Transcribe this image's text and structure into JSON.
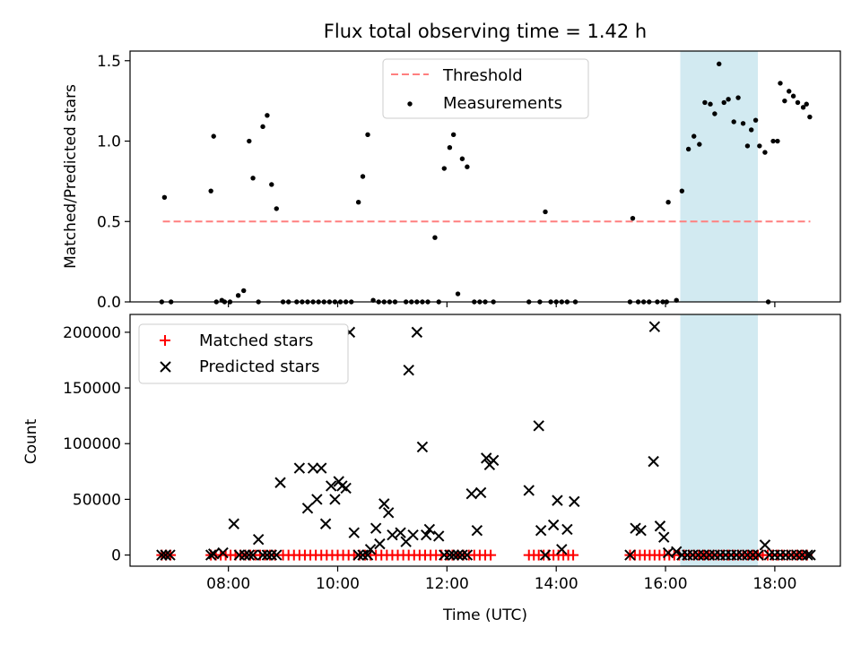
{
  "figure": {
    "title": "Flux total observing time = 1.42 h",
    "shaded_span": {
      "x_start_hours": 16.27,
      "x_end_hours": 17.69,
      "color": "#add8e6"
    }
  },
  "chart_data": [
    {
      "type": "scatter",
      "panel": "top",
      "ylabel": "Matched/Predicted stars",
      "xlabel": "",
      "xlim": [
        6.2,
        19.2
      ],
      "ylim": [
        0,
        1.56
      ],
      "y_ticks": [
        0.0,
        0.5,
        1.0,
        1.5
      ],
      "y_tick_labels": [
        "0.0",
        "0.5",
        "1.0",
        "1.5"
      ],
      "legend": {
        "position": "top-center",
        "threshold_label": "Threshold",
        "measurements_label": "Measurements"
      },
      "threshold": {
        "value": 0.5,
        "x_range": [
          6.8,
          18.65
        ],
        "color": "#ff7f7f"
      },
      "series": [
        {
          "name": "Measurements",
          "color": "#000000",
          "points": [
            [
              6.78,
              0
            ],
            [
              6.83,
              0.65
            ],
            [
              6.95,
              0
            ],
            [
              7.68,
              0.69
            ],
            [
              7.73,
              1.03
            ],
            [
              7.78,
              0
            ],
            [
              7.88,
              0.01
            ],
            [
              7.93,
              0
            ],
            [
              8.03,
              0
            ],
            [
              8.18,
              0.04
            ],
            [
              8.28,
              0.07
            ],
            [
              8.38,
              1.0
            ],
            [
              8.45,
              0.77
            ],
            [
              8.55,
              0
            ],
            [
              8.63,
              1.09
            ],
            [
              8.71,
              1.16
            ],
            [
              8.79,
              0.73
            ],
            [
              8.88,
              0.58
            ],
            [
              9.0,
              0
            ],
            [
              9.1,
              0
            ],
            [
              9.25,
              0
            ],
            [
              9.35,
              0
            ],
            [
              9.45,
              0
            ],
            [
              9.55,
              0
            ],
            [
              9.65,
              0
            ],
            [
              9.75,
              0
            ],
            [
              9.85,
              0
            ],
            [
              9.95,
              0
            ],
            [
              10.05,
              0
            ],
            [
              10.15,
              0
            ],
            [
              10.25,
              0
            ],
            [
              10.38,
              0.62
            ],
            [
              10.46,
              0.78
            ],
            [
              10.55,
              1.04
            ],
            [
              10.65,
              0.01
            ],
            [
              10.75,
              0
            ],
            [
              10.85,
              0
            ],
            [
              10.95,
              0
            ],
            [
              11.05,
              0
            ],
            [
              11.25,
              0
            ],
            [
              11.35,
              0
            ],
            [
              11.45,
              0
            ],
            [
              11.55,
              0
            ],
            [
              11.65,
              0
            ],
            [
              11.78,
              0.4
            ],
            [
              11.85,
              0
            ],
            [
              11.95,
              0.83
            ],
            [
              12.05,
              0.96
            ],
            [
              12.12,
              1.04
            ],
            [
              12.2,
              0.05
            ],
            [
              12.28,
              0.89
            ],
            [
              12.37,
              0.84
            ],
            [
              12.5,
              0
            ],
            [
              12.6,
              0
            ],
            [
              12.7,
              0
            ],
            [
              12.85,
              0
            ],
            [
              13.5,
              0
            ],
            [
              13.7,
              0
            ],
            [
              13.8,
              0.56
            ],
            [
              13.9,
              0
            ],
            [
              14.0,
              0
            ],
            [
              14.1,
              0
            ],
            [
              14.2,
              0
            ],
            [
              14.35,
              0
            ],
            [
              15.35,
              0
            ],
            [
              15.4,
              0.52
            ],
            [
              15.5,
              0
            ],
            [
              15.6,
              0
            ],
            [
              15.7,
              0
            ],
            [
              15.85,
              0
            ],
            [
              15.95,
              0
            ],
            [
              16.02,
              0
            ],
            [
              16.05,
              0.62
            ],
            [
              16.2,
              0.01
            ],
            [
              16.3,
              0.69
            ],
            [
              16.42,
              0.95
            ],
            [
              16.52,
              1.03
            ],
            [
              16.62,
              0.98
            ],
            [
              16.72,
              1.24
            ],
            [
              16.82,
              1.23
            ],
            [
              16.9,
              1.17
            ],
            [
              16.98,
              1.48
            ],
            [
              17.07,
              1.24
            ],
            [
              17.15,
              1.26
            ],
            [
              17.25,
              1.12
            ],
            [
              17.33,
              1.27
            ],
            [
              17.42,
              1.11
            ],
            [
              17.5,
              0.97
            ],
            [
              17.57,
              1.07
            ],
            [
              17.65,
              1.13
            ],
            [
              17.72,
              0.97
            ],
            [
              17.82,
              0.93
            ],
            [
              17.88,
              0
            ],
            [
              17.97,
              1.0
            ],
            [
              18.05,
              1.0
            ],
            [
              18.1,
              1.36
            ],
            [
              18.18,
              1.25
            ],
            [
              18.26,
              1.31
            ],
            [
              18.34,
              1.28
            ],
            [
              18.42,
              1.24
            ],
            [
              18.52,
              1.21
            ],
            [
              18.58,
              1.23
            ],
            [
              18.64,
              1.15
            ]
          ]
        }
      ]
    },
    {
      "type": "scatter",
      "panel": "bottom",
      "ylabel": "Count",
      "xlabel": "Time (UTC)",
      "xlim": [
        6.2,
        19.2
      ],
      "ylim": [
        -10000,
        216000
      ],
      "y_ticks": [
        0,
        50000,
        100000,
        150000,
        200000
      ],
      "y_tick_labels": [
        "0",
        "50000",
        "100000",
        "150000",
        "200000"
      ],
      "x_ticks": [
        8,
        10,
        12,
        14,
        16,
        18
      ],
      "x_tick_labels": [
        "08:00",
        "10:00",
        "12:00",
        "14:00",
        "16:00",
        "18:00"
      ],
      "legend": {
        "position": "top-left",
        "matched_label": "Matched stars",
        "predicted_label": "Predicted stars"
      },
      "series": [
        {
          "name": "Matched stars",
          "marker": "+",
          "color": "#ff0000",
          "x_ranges": [
            [
              6.78,
              6.95,
              0.08
            ],
            [
              7.68,
              8.9,
              0.09
            ],
            [
              9.0,
              12.85,
              0.1
            ],
            [
              13.5,
              14.35,
              0.09
            ],
            [
              15.35,
              18.65,
              0.09
            ]
          ],
          "y": 0
        },
        {
          "name": "Predicted stars",
          "marker": "x",
          "color": "#000000",
          "points": [
            [
              6.78,
              0
            ],
            [
              6.85,
              0
            ],
            [
              6.93,
              0
            ],
            [
              7.68,
              0
            ],
            [
              7.73,
              1000
            ],
            [
              7.9,
              2000
            ],
            [
              8.1,
              28000
            ],
            [
              8.2,
              0
            ],
            [
              8.3,
              0
            ],
            [
              8.38,
              0
            ],
            [
              8.45,
              0
            ],
            [
              8.55,
              14000
            ],
            [
              8.63,
              0
            ],
            [
              8.71,
              0
            ],
            [
              8.79,
              0
            ],
            [
              8.88,
              0
            ],
            [
              8.95,
              65000
            ],
            [
              9.3,
              78000
            ],
            [
              9.45,
              42000
            ],
            [
              9.55,
              78000
            ],
            [
              9.62,
              50000
            ],
            [
              9.7,
              78000
            ],
            [
              9.78,
              28000
            ],
            [
              9.88,
              62000
            ],
            [
              9.95,
              50000
            ],
            [
              10.02,
              66000
            ],
            [
              10.08,
              62000
            ],
            [
              10.15,
              60000
            ],
            [
              10.22,
              200000
            ],
            [
              10.3,
              20000
            ],
            [
              10.38,
              0
            ],
            [
              10.46,
              0
            ],
            [
              10.55,
              0
            ],
            [
              10.6,
              5000
            ],
            [
              10.7,
              24000
            ],
            [
              10.77,
              10000
            ],
            [
              10.85,
              46000
            ],
            [
              10.93,
              38000
            ],
            [
              11.0,
              18000
            ],
            [
              11.15,
              20000
            ],
            [
              11.25,
              12000
            ],
            [
              11.3,
              166000
            ],
            [
              11.38,
              18000
            ],
            [
              11.45,
              200000
            ],
            [
              11.55,
              97000
            ],
            [
              11.62,
              18000
            ],
            [
              11.68,
              23000
            ],
            [
              11.85,
              17000
            ],
            [
              11.95,
              0
            ],
            [
              12.05,
              0
            ],
            [
              12.12,
              0
            ],
            [
              12.2,
              0
            ],
            [
              12.28,
              0
            ],
            [
              12.37,
              0
            ],
            [
              12.45,
              55000
            ],
            [
              12.55,
              22000
            ],
            [
              12.62,
              56000
            ],
            [
              12.72,
              87000
            ],
            [
              12.78,
              81000
            ],
            [
              12.85,
              85000
            ],
            [
              13.5,
              58000
            ],
            [
              13.68,
              116000
            ],
            [
              13.72,
              22000
            ],
            [
              13.8,
              0
            ],
            [
              13.95,
              27000
            ],
            [
              14.02,
              49000
            ],
            [
              14.1,
              5000
            ],
            [
              14.2,
              23000
            ],
            [
              14.33,
              48000
            ],
            [
              15.35,
              0
            ],
            [
              15.45,
              24000
            ],
            [
              15.55,
              22000
            ],
            [
              15.78,
              84000
            ],
            [
              15.8,
              205000
            ],
            [
              15.9,
              26000
            ],
            [
              15.97,
              16000
            ],
            [
              16.05,
              2000
            ],
            [
              16.2,
              3000
            ],
            [
              16.3,
              0
            ],
            [
              16.4,
              0
            ],
            [
              16.5,
              0
            ],
            [
              16.6,
              0
            ],
            [
              16.7,
              0
            ],
            [
              16.8,
              0
            ],
            [
              16.9,
              0
            ],
            [
              17.0,
              0
            ],
            [
              17.1,
              0
            ],
            [
              17.2,
              0
            ],
            [
              17.3,
              0
            ],
            [
              17.4,
              0
            ],
            [
              17.5,
              0
            ],
            [
              17.6,
              0
            ],
            [
              17.7,
              0
            ],
            [
              17.82,
              9000
            ],
            [
              17.9,
              0
            ],
            [
              18.0,
              0
            ],
            [
              18.1,
              0
            ],
            [
              18.2,
              0
            ],
            [
              18.3,
              0
            ],
            [
              18.4,
              0
            ],
            [
              18.5,
              0
            ],
            [
              18.6,
              0
            ],
            [
              18.65,
              0
            ]
          ]
        }
      ]
    }
  ]
}
